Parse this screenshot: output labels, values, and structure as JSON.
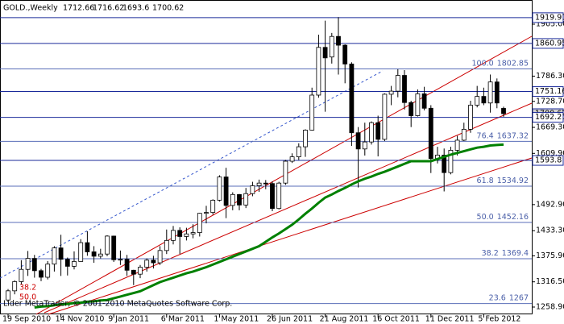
{
  "chart_data": {
    "type": "candlestick",
    "symbol": "GOLD.,Weekly",
    "ohlc": [
      [
        1275,
        1300,
        1270,
        1296
      ],
      [
        1296,
        1320,
        1288,
        1317
      ],
      [
        1317,
        1366,
        1310,
        1345
      ],
      [
        1345,
        1387,
        1330,
        1370
      ],
      [
        1370,
        1378,
        1326,
        1342
      ],
      [
        1342,
        1346,
        1318,
        1327
      ],
      [
        1327,
        1364,
        1322,
        1357
      ],
      [
        1357,
        1398,
        1340,
        1394
      ],
      [
        1394,
        1424,
        1330,
        1368
      ],
      [
        1368,
        1372,
        1331,
        1352
      ],
      [
        1352,
        1386,
        1345,
        1363
      ],
      [
        1363,
        1414,
        1363,
        1406
      ],
      [
        1406,
        1432,
        1376,
        1385
      ],
      [
        1385,
        1398,
        1360,
        1375
      ],
      [
        1375,
        1392,
        1370,
        1380
      ],
      [
        1380,
        1423,
        1375,
        1421
      ],
      [
        1421,
        1422,
        1362,
        1367
      ],
      [
        1367,
        1388,
        1355,
        1368
      ],
      [
        1368,
        1378,
        1330,
        1343
      ],
      [
        1343,
        1344,
        1309,
        1334
      ],
      [
        1334,
        1355,
        1325,
        1350
      ],
      [
        1350,
        1370,
        1340,
        1366
      ],
      [
        1366,
        1376,
        1347,
        1360
      ],
      [
        1360,
        1398,
        1355,
        1388
      ],
      [
        1388,
        1436,
        1380,
        1411
      ],
      [
        1411,
        1444,
        1402,
        1434
      ],
      [
        1434,
        1441,
        1380,
        1420
      ],
      [
        1420,
        1440,
        1411,
        1426
      ],
      [
        1426,
        1448,
        1416,
        1429
      ],
      [
        1429,
        1474,
        1420,
        1473
      ],
      [
        1473,
        1490,
        1450,
        1475
      ],
      [
        1475,
        1505,
        1470,
        1503
      ],
      [
        1503,
        1560,
        1500,
        1556
      ],
      [
        1556,
        1577,
        1462,
        1491
      ],
      [
        1491,
        1521,
        1480,
        1516
      ],
      [
        1516,
        1517,
        1480,
        1492
      ],
      [
        1492,
        1531,
        1485,
        1518
      ],
      [
        1518,
        1545,
        1512,
        1536
      ],
      [
        1536,
        1550,
        1522,
        1542
      ],
      [
        1542,
        1549,
        1528,
        1541
      ],
      [
        1541,
        1546,
        1478,
        1484
      ],
      [
        1484,
        1545,
        1482,
        1542
      ],
      [
        1542,
        1595,
        1538,
        1592
      ],
      [
        1592,
        1610,
        1588,
        1602
      ],
      [
        1602,
        1633,
        1595,
        1625
      ],
      [
        1625,
        1665,
        1602,
        1663
      ],
      [
        1663,
        1760,
        1662,
        1743
      ],
      [
        1743,
        1881,
        1737,
        1852
      ],
      [
        1852,
        1913,
        1705,
        1828
      ],
      [
        1830,
        1885,
        1815,
        1877
      ],
      [
        1877,
        1921,
        1790,
        1857
      ],
      [
        1857,
        1859,
        1770,
        1814
      ],
      [
        1814,
        1818,
        1627,
        1657
      ],
      [
        1657,
        1670,
        1532,
        1620
      ],
      [
        1620,
        1680,
        1605,
        1636
      ],
      [
        1636,
        1683,
        1630,
        1680
      ],
      [
        1680,
        1696,
        1603,
        1642
      ],
      [
        1642,
        1747,
        1638,
        1745
      ],
      [
        1745,
        1764,
        1720,
        1752
      ],
      [
        1752,
        1802,
        1738,
        1788
      ],
      [
        1788,
        1800,
        1710,
        1726
      ],
      [
        1726,
        1730,
        1670,
        1696
      ],
      [
        1696,
        1756,
        1694,
        1746
      ],
      [
        1746,
        1762,
        1708,
        1713
      ],
      [
        1713,
        1720,
        1565,
        1598
      ],
      [
        1598,
        1625,
        1587,
        1606
      ],
      [
        1606,
        1621,
        1523,
        1566
      ],
      [
        1566,
        1625,
        1562,
        1617
      ],
      [
        1617,
        1650,
        1605,
        1640
      ],
      [
        1640,
        1680,
        1638,
        1665
      ],
      [
        1665,
        1730,
        1657,
        1720
      ],
      [
        1720,
        1764,
        1715,
        1740
      ],
      [
        1740,
        1760,
        1720,
        1725
      ],
      [
        1725,
        1790,
        1703,
        1773
      ],
      [
        1773,
        1781,
        1713,
        1725
      ],
      [
        1712.66,
        1716.62,
        1693.6,
        1700.62
      ]
    ],
    "ma": {
      "color": "#008000",
      "values": [
        null,
        null,
        null,
        null,
        1258,
        1260,
        1261,
        1263,
        1265,
        1266,
        1268,
        1269,
        1271,
        1272,
        1274,
        1275,
        1279,
        1283,
        1287,
        1291,
        1295,
        1302,
        1309,
        1316,
        1321,
        1326,
        1331,
        1336,
        1340,
        1345,
        1350,
        1356,
        1362,
        1368,
        1374,
        1380,
        1386,
        1392,
        1398,
        1408,
        1418,
        1427,
        1437,
        1447,
        1459,
        1472,
        1484,
        1497,
        1509,
        1516,
        1524,
        1531,
        1539,
        1546,
        1552,
        1557,
        1563,
        1568,
        1574,
        1580,
        1586,
        1592,
        1592,
        1592,
        1592,
        1597,
        1602,
        1607,
        1611,
        1615,
        1619,
        1623,
        1625,
        1628,
        1629,
        1630
      ]
    },
    "ylim": [
      1242.3,
      1960.2
    ],
    "yticks": [
      {
        "value": 1905,
        "label": "1905.00"
      },
      {
        "value": 1786.3,
        "label": "1786.30"
      },
      {
        "value": 1728.7,
        "label": "1728.70"
      },
      {
        "value": 1669.3,
        "label": "1669.30"
      },
      {
        "value": 1609.9,
        "label": "1609.90"
      },
      {
        "value": 1492.9,
        "label": "1492.90"
      },
      {
        "value": 1433.3,
        "label": "1433.30"
      },
      {
        "value": 1375.9,
        "label": "1375.90"
      },
      {
        "value": 1316.5,
        "label": "1316.50"
      },
      {
        "value": 1258.9,
        "label": "1258.90"
      }
    ],
    "xticks": [
      {
        "value": 0,
        "label": "19 Sep 2010"
      },
      {
        "value": 8,
        "label": "14 Nov 2010"
      },
      {
        "value": 16,
        "label": "9 Jan 2011"
      },
      {
        "value": 24,
        "label": "6 Mar 2011"
      },
      {
        "value": 32,
        "label": "1 May 2011"
      },
      {
        "value": 40,
        "label": "26 Jun 2011"
      },
      {
        "value": 48,
        "label": "21 Aug 2011"
      },
      {
        "value": 56,
        "label": "16 Oct 2011"
      },
      {
        "value": 64,
        "label": "11 Dec 2011"
      },
      {
        "value": 72,
        "label": "5 Feb 2012"
      }
    ],
    "current_price": 1700.62,
    "levels": [
      1919.91,
      1860.95,
      1751.16,
      1692.21,
      1593.8
    ],
    "fib_levels": [
      {
        "ratio": "100.0",
        "value": 1802.85
      },
      {
        "ratio": "76.4",
        "value": 1637.32
      },
      {
        "ratio": "61.8",
        "value": 1534.92
      },
      {
        "ratio": "50.0",
        "value": 1452.16
      },
      {
        "ratio": "38.2",
        "value": 1369.4
      },
      {
        "ratio": "23.6",
        "value": 1267.0
      }
    ],
    "annotations": [
      "38.2",
      "50.0"
    ],
    "copyright": "Lider MetaTrader, © 2001-2010 MetaQuotes Software Corp."
  }
}
